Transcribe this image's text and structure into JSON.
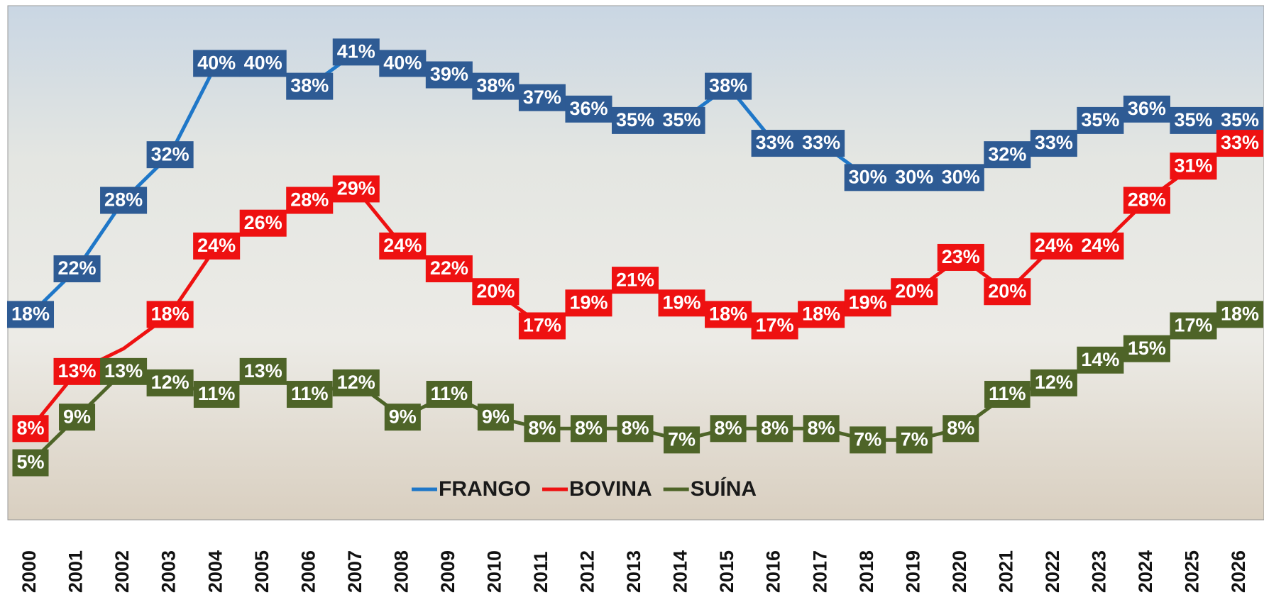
{
  "chart_data": {
    "type": "line",
    "categories": [
      "2000",
      "2001",
      "2002",
      "2003",
      "2004",
      "2005",
      "2006",
      "2007",
      "2008",
      "2009",
      "2010",
      "2011",
      "2012",
      "2013",
      "2014",
      "2015",
      "2016",
      "2017",
      "2018",
      "2019",
      "2020",
      "2021",
      "2022",
      "2023",
      "2024",
      "2025",
      "2026"
    ],
    "series": [
      {
        "name": "FRANGO",
        "color": "#2e5b94",
        "line_color": "#1f77c8",
        "values": [
          18,
          22,
          28,
          32,
          40,
          40,
          38,
          41,
          40,
          39,
          38,
          37,
          36,
          35,
          35,
          38,
          33,
          33,
          30,
          30,
          30,
          32,
          33,
          35,
          36,
          35,
          35
        ],
        "value_labels": [
          "18%",
          "22%",
          "28%",
          "32%",
          "40%",
          "40%",
          "38%",
          "41%",
          "40%",
          "39%",
          "38%",
          "37%",
          "36%",
          "35%",
          "35%",
          "38%",
          "33%",
          "33%",
          "30%",
          "30%",
          "30%",
          "32%",
          "33%",
          "35%",
          "36%",
          "35%",
          "35%"
        ]
      },
      {
        "name": "BOVINA",
        "color": "#ee1111",
        "line_color": "#ee1111",
        "values": [
          8,
          13,
          15,
          18,
          24,
          26,
          28,
          29,
          24,
          22,
          20,
          17,
          19,
          21,
          19,
          18,
          17,
          18,
          19,
          20,
          23,
          20,
          24,
          24,
          28,
          31,
          33
        ],
        "value_labels": [
          "8%",
          "13%",
          null,
          "18%",
          "24%",
          "26%",
          "28%",
          "29%",
          "24%",
          "22%",
          "20%",
          "17%",
          "19%",
          "21%",
          "19%",
          "18%",
          "17%",
          "18%",
          "19%",
          "20%",
          "23%",
          "20%",
          "24%",
          "24%",
          "28%",
          "31%",
          "33%"
        ]
      },
      {
        "name": "SUÍNA",
        "color": "#4e6428",
        "line_color": "#4e6428",
        "values": [
          5,
          9,
          13,
          12,
          11,
          13,
          11,
          12,
          9,
          11,
          9,
          8,
          8,
          8,
          7,
          8,
          8,
          8,
          7,
          7,
          8,
          11,
          12,
          14,
          15,
          17,
          18
        ],
        "value_labels": [
          "5%",
          "9%",
          "13%",
          "12%",
          "11%",
          "13%",
          "11%",
          "12%",
          "9%",
          "11%",
          "9%",
          "8%",
          "8%",
          "8%",
          "7%",
          "8%",
          "8%",
          "8%",
          "7%",
          "7%",
          "8%",
          "11%",
          "12%",
          "14%",
          "15%",
          "17%",
          "18%"
        ]
      }
    ],
    "ylim": [
      0,
      45
    ],
    "legend": "bottom"
  }
}
